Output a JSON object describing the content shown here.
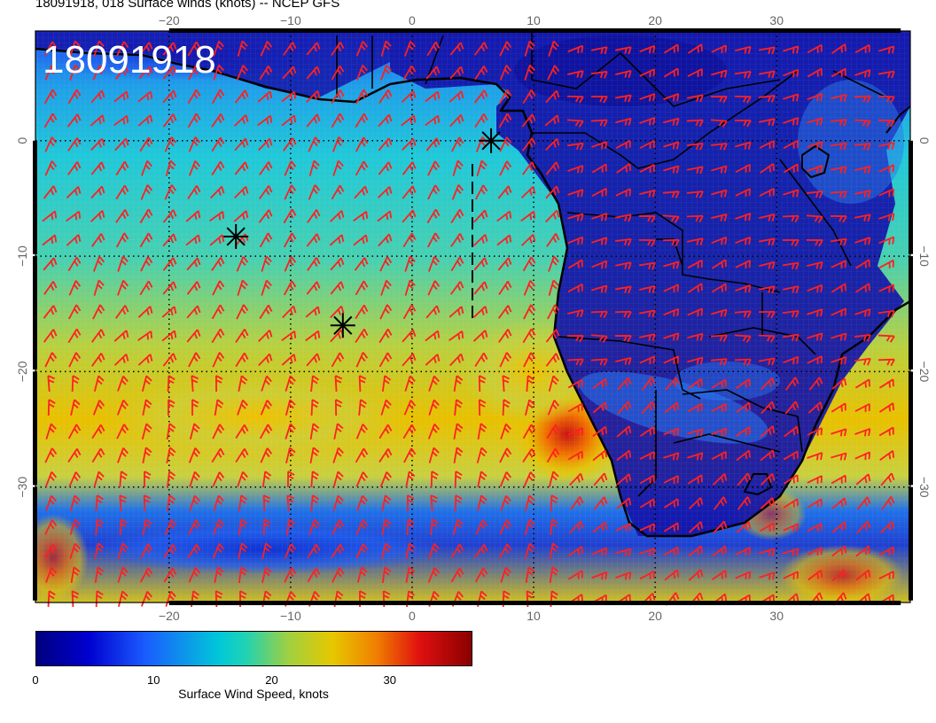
{
  "title": "18091918, 018 Surface winds (knots) -- NCEP GFS",
  "stamp": "18091918",
  "map": {
    "lon_range": [
      -31,
      41
    ],
    "lat_range": [
      -40,
      9.5
    ],
    "lon_ticks": [
      "-20",
      "-10",
      "0",
      "10",
      "20",
      "30"
    ],
    "lat_ticks": [
      "0",
      "-10",
      "-20",
      "-30"
    ],
    "markers": [
      {
        "name": "marker-offshore-north",
        "lon": 6.5,
        "lat": 0
      },
      {
        "name": "marker-atlantic-west",
        "lon": -14.5,
        "lat": -8.3
      },
      {
        "name": "marker-atlantic-central",
        "lon": -5.7,
        "lat": -16
      }
    ],
    "barb_color": "#ff2020"
  },
  "colorbar": {
    "labels": [
      {
        "text": "0",
        "value": 0
      },
      {
        "text": "10",
        "value": 10
      },
      {
        "text": "20",
        "value": 20
      },
      {
        "text": "30",
        "value": 30
      }
    ],
    "range": [
      0,
      37
    ],
    "title": "Surface Wind Speed, knots"
  }
}
